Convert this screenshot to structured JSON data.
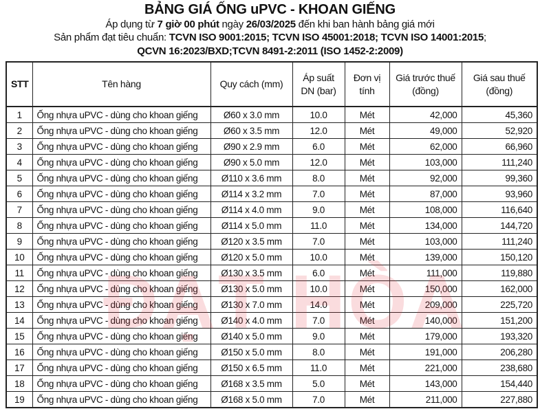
{
  "title": "BẢNG GIÁ ỐNG uPVC - KHOAN GIẾNG",
  "line1": {
    "a": "Áp dụng từ ",
    "b": "7 giờ 00 phút",
    "c": " ngày ",
    "d": "26/03/2025",
    "e": " đến khi ban hành bảng giá mới"
  },
  "line2": {
    "a": "Sản phẩm đạt tiêu chuẩn: ",
    "b": "TCVN ISO 9001:2015; TCVN ISO 45001:2018; TCVN ISO 14001:2015",
    ";": ";"
  },
  "line3": "QCVN 16:2023/BXD;TCVN 8491-2:2011 (ISO 1452-2:2009)",
  "watermark": "ĐẠT HÒA",
  "columns": {
    "stt": "STT",
    "name": "Tên hàng",
    "spec": "Quy cách (mm)",
    "pressure1": "Áp suất",
    "pressure2": "DN (bar)",
    "unit1": "Đơn vị",
    "unit2": "tính",
    "pre1": "Giá trước thuế",
    "pre2": "(đồng)",
    "post1": "Giá sau thuế",
    "post2": "(đồng)"
  },
  "rows": [
    [
      "1",
      "Ống nhựa uPVC - dùng cho khoan giếng",
      "Ø60 x 3.0 mm",
      "10.0",
      "Mét",
      "42,000",
      "45,360"
    ],
    [
      "2",
      "Ống nhựa uPVC - dùng cho khoan giếng",
      "Ø60 x 3.5 mm",
      "12.0",
      "Mét",
      "49,000",
      "52,920"
    ],
    [
      "3",
      "Ống nhựa uPVC - dùng cho khoan giếng",
      "Ø90 x 2.9 mm",
      "6.0",
      "Mét",
      "62,000",
      "66,960"
    ],
    [
      "4",
      "Ống nhựa uPVC - dùng cho khoan giếng",
      "Ø90 x 5.0 mm",
      "12.0",
      "Mét",
      "103,000",
      "111,240"
    ],
    [
      "5",
      "Ống nhựa uPVC - dùng cho khoan giếng",
      "Ø110 x 3.6 mm",
      "8.0",
      "Mét",
      "92,000",
      "99,360"
    ],
    [
      "6",
      "Ống nhựa uPVC - dùng cho khoan giếng",
      "Ø114 x 3.2 mm",
      "7.0",
      "Mét",
      "87,000",
      "93,960"
    ],
    [
      "7",
      "Ống nhựa uPVC - dùng cho khoan giếng",
      "Ø114 x 4.0 mm",
      "9.0",
      "Mét",
      "108,000",
      "116,640"
    ],
    [
      "8",
      "Ống nhựa uPVC - dùng cho khoan giếng",
      "Ø114 x 5.0 mm",
      "11.0",
      "Mét",
      "134,000",
      "144,720"
    ],
    [
      "9",
      "Ống nhựa uPVC - dùng cho khoan giếng",
      "Ø120 x 3.5 mm",
      "7.0",
      "Mét",
      "103,000",
      "111,240"
    ],
    [
      "10",
      "Ống nhựa uPVC - dùng cho khoan giếng",
      "Ø120 x 5.0 mm",
      "10.0",
      "Mét",
      "139,000",
      "150,120"
    ],
    [
      "11",
      "Ống nhựa uPVC - dùng cho khoan giếng",
      "Ø130 x 3.5 mm",
      "6.0",
      "Mét",
      "111,000",
      "119,880"
    ],
    [
      "12",
      "Ống nhựa uPVC - dùng cho khoan giếng",
      "Ø130 x 5.0 mm",
      "10.0",
      "Mét",
      "150,000",
      "162,000"
    ],
    [
      "13",
      "Ống nhựa uPVC - dùng cho khoan giếng",
      "Ø130 x 7.0 mm",
      "14.0",
      "Mét",
      "209,000",
      "225,720"
    ],
    [
      "14",
      "Ống nhựa uPVC - dùng cho khoan giếng",
      "Ø140 x 4.0 mm",
      "7.0",
      "Mét",
      "140,000",
      "151,200"
    ],
    [
      "15",
      "Ống nhựa uPVC - dùng cho khoan giếng",
      "Ø140 x 5.0 mm",
      "9.0",
      "Mét",
      "179,000",
      "193,320"
    ],
    [
      "16",
      "Ống nhựa uPVC - dùng cho khoan giếng",
      "Ø150 x 5.0 mm",
      "8.0",
      "Mét",
      "191,000",
      "206,280"
    ],
    [
      "17",
      "Ống nhựa uPVC - dùng cho khoan giếng",
      "Ø150 x 6.5 mm",
      "11.0",
      "Mét",
      "221,000",
      "238,680"
    ],
    [
      "18",
      "Ống nhựa uPVC - dùng cho khoan giếng",
      "Ø168 x 3.5 mm",
      "5.0",
      "Mét",
      "143,000",
      "154,440"
    ],
    [
      "19",
      "Ống nhựa uPVC - dùng cho khoan giếng",
      "Ø168 x 5.0 mm",
      "7.0",
      "Mét",
      "211,000",
      "227,880"
    ]
  ]
}
